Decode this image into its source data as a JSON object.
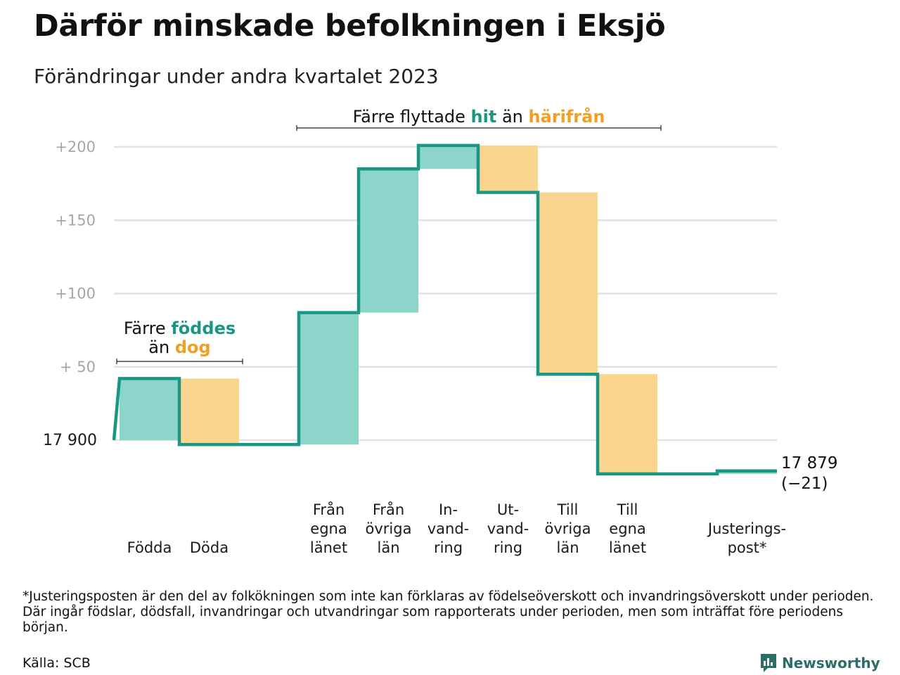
{
  "title": "Därför minskade befolkningen i Eksjö",
  "subtitle": "Förändringar under andra kvartalet 2023",
  "chart_data": {
    "type": "waterfall",
    "baseline_label": "17  900",
    "baseline_value": 17900,
    "y_ticks": [
      {
        "value": 50,
        "label": "+  50"
      },
      {
        "value": 100,
        "label": "+100"
      },
      {
        "value": 150,
        "label": "+150"
      },
      {
        "value": 200,
        "label": "+200"
      }
    ],
    "steps": [
      {
        "key": "fodda",
        "label_lines": [
          "Födda"
        ],
        "value": 42,
        "kind": "in"
      },
      {
        "key": "doda",
        "label_lines": [
          "Döda"
        ],
        "value": -45,
        "kind": "out"
      },
      {
        "key": "gap",
        "label_lines": [],
        "value": 0,
        "kind": "none"
      },
      {
        "key": "fran_egna",
        "label_lines": [
          "Från",
          "egna",
          "länet"
        ],
        "value": 90,
        "kind": "in"
      },
      {
        "key": "fran_ovriga",
        "label_lines": [
          "Från",
          "övriga",
          "län"
        ],
        "value": 98,
        "kind": "in"
      },
      {
        "key": "invandring",
        "label_lines": [
          "In-",
          "vand-",
          "ring"
        ],
        "value": 16,
        "kind": "in"
      },
      {
        "key": "utvandring",
        "label_lines": [
          "Ut-",
          "vand-",
          "ring"
        ],
        "value": -32,
        "kind": "out"
      },
      {
        "key": "till_ovriga",
        "label_lines": [
          "Till",
          "övriga",
          "län"
        ],
        "value": -124,
        "kind": "out"
      },
      {
        "key": "till_egna",
        "label_lines": [
          "Till",
          "egna",
          "länet"
        ],
        "value": -68,
        "kind": "out"
      },
      {
        "key": "gap2",
        "label_lines": [],
        "value": 0,
        "kind": "none"
      },
      {
        "key": "justering",
        "label_lines": [
          "Justerings-",
          "post*"
        ],
        "value": 2,
        "kind": "in"
      }
    ],
    "end_label": [
      "17 879",
      "(−21)"
    ],
    "annotations": {
      "births": {
        "line1_prefix": "Färre ",
        "line1_highlight": "föddes",
        "line2_prefix": "än ",
        "line2_highlight": "dog"
      },
      "moves": {
        "prefix": "Färre flyttade ",
        "highlight1": "hit",
        "middle": " än ",
        "highlight2": "härifrån"
      }
    },
    "colors": {
      "in": "#8dd5cb",
      "out": "#fad58d",
      "line": "#1a9685",
      "grid": "#e3e3e3"
    },
    "ylim": [
      -25,
      205
    ],
    "grid": true
  },
  "footnote": "*Justeringsposten är den del av folkökningen som inte kan förklaras av födelseöverskott och invandringsöverskott under perioden. Där ingår födslar, dödsfall, invandringar och utvandringar som rapporterats under perioden, men som inträffat före periodens början.",
  "source": "Källa: SCB",
  "brand": "Newsworthy",
  "brand_icon": "newsworthy-logo-icon"
}
